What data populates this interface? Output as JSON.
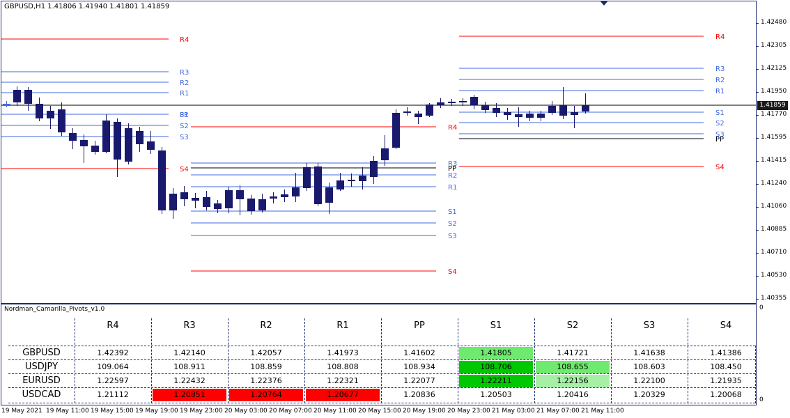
{
  "chart": {
    "symbol_info": "GBPUSD,H1  1.41806 1.41940 1.41801 1.41859",
    "price_ticks": [
      "1.42480",
      "1.42305",
      "1.42125",
      "1.41950",
      "1.41770",
      "1.41595",
      "1.41415",
      "1.41240",
      "1.41060",
      "1.40885",
      "1.40710",
      "1.40530",
      "1.40355"
    ],
    "current_price": "1.41859",
    "time_labels": [
      "19 May 2021",
      "19 May 11:00",
      "19 May 15:00",
      "19 May 19:00",
      "19 May 23:00",
      "20 May 03:00",
      "20 May 07:00",
      "20 May 11:00",
      "20 May 15:00",
      "20 May 19:00",
      "20 May 23:00",
      "21 May 03:00",
      "21 May 07:00",
      "21 May 11:00"
    ],
    "colors": {
      "up": "#4169e1",
      "down": "#19196e",
      "resistance_line": "#4169e1",
      "r4_s4": "#ff0000",
      "pp": "#000000",
      "current_line": "#000000"
    },
    "level_labels": [
      "R4",
      "R3",
      "R2",
      "R1",
      "PP",
      "S1",
      "S2",
      "S3",
      "S4"
    ]
  },
  "indicator": {
    "name": "Nordman_Camarilla_Pivots_v1.0",
    "scale_top": "0",
    "scale_bottom": "0",
    "columns": [
      "R4",
      "R3",
      "R2",
      "R1",
      "PP",
      "S1",
      "S2",
      "S3",
      "S4"
    ],
    "rows": [
      {
        "symbol": "GBPUSD",
        "values": [
          "1.42392",
          "1.42140",
          "1.42057",
          "1.41973",
          "1.41602",
          "1.41805",
          "1.41721",
          "1.41638",
          "1.41386"
        ]
      },
      {
        "symbol": "USDJPY",
        "values": [
          "109.064",
          "108.911",
          "108.859",
          "108.808",
          "108.934",
          "108.706",
          "108.655",
          "108.603",
          "108.450"
        ]
      },
      {
        "symbol": "EURUSD",
        "values": [
          "1.22597",
          "1.22432",
          "1.22376",
          "1.22321",
          "1.22077",
          "1.22211",
          "1.22156",
          "1.22100",
          "1.21935"
        ]
      },
      {
        "symbol": "USDCAD",
        "values": [
          "1.21112",
          "1.20851",
          "1.20764",
          "1.20677",
          "1.20836",
          "1.20503",
          "1.20416",
          "1.20329",
          "1.20068"
        ]
      }
    ],
    "highlight_colors": {
      "red": "#ff0000",
      "green": "#00c800",
      "light_green": "#6eea6e",
      "pale_green": "#a6f0a6"
    }
  }
}
